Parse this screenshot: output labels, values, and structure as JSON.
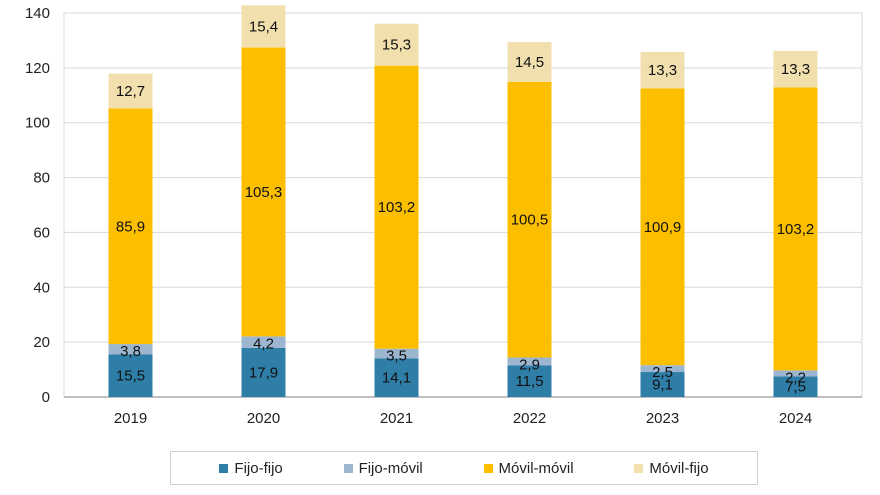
{
  "chart_data": {
    "type": "bar",
    "stacked": true,
    "categories": [
      "2019",
      "2020",
      "2021",
      "2022",
      "2023",
      "2024"
    ],
    "series": [
      {
        "name": "Fijo-fijo",
        "color": "#2e7ea8",
        "values": [
          15.5,
          17.9,
          14.1,
          11.5,
          9.1,
          7.5
        ],
        "labels": [
          "15,5",
          "17,9",
          "14,1",
          "11,5",
          "9,1",
          "7,5"
        ]
      },
      {
        "name": "Fijo-móvil",
        "color": "#9db6cf",
        "values": [
          3.8,
          4.2,
          3.5,
          2.9,
          2.5,
          2.2
        ],
        "labels": [
          "3,8",
          "4,2",
          "3,5",
          "2,9",
          "2,5",
          "2,2"
        ]
      },
      {
        "name": "Móvil-móvil",
        "color": "#fbbf00",
        "values": [
          85.9,
          105.3,
          103.2,
          100.5,
          100.9,
          103.2
        ],
        "labels": [
          "85,9",
          "105,3",
          "103,2",
          "100,5",
          "100,9",
          "103,2"
        ]
      },
      {
        "name": "Móvil-fijo",
        "color": "#f1dfad",
        "values": [
          12.7,
          15.4,
          15.3,
          14.5,
          13.3,
          13.3
        ],
        "labels": [
          "12,7",
          "15,4",
          "15,3",
          "14,5",
          "13,3",
          "13,3"
        ]
      }
    ],
    "ylim": [
      0,
      140
    ],
    "yticks": [
      0,
      20,
      40,
      60,
      80,
      100,
      120,
      140
    ],
    "grid": true,
    "legend_position": "bottom"
  }
}
